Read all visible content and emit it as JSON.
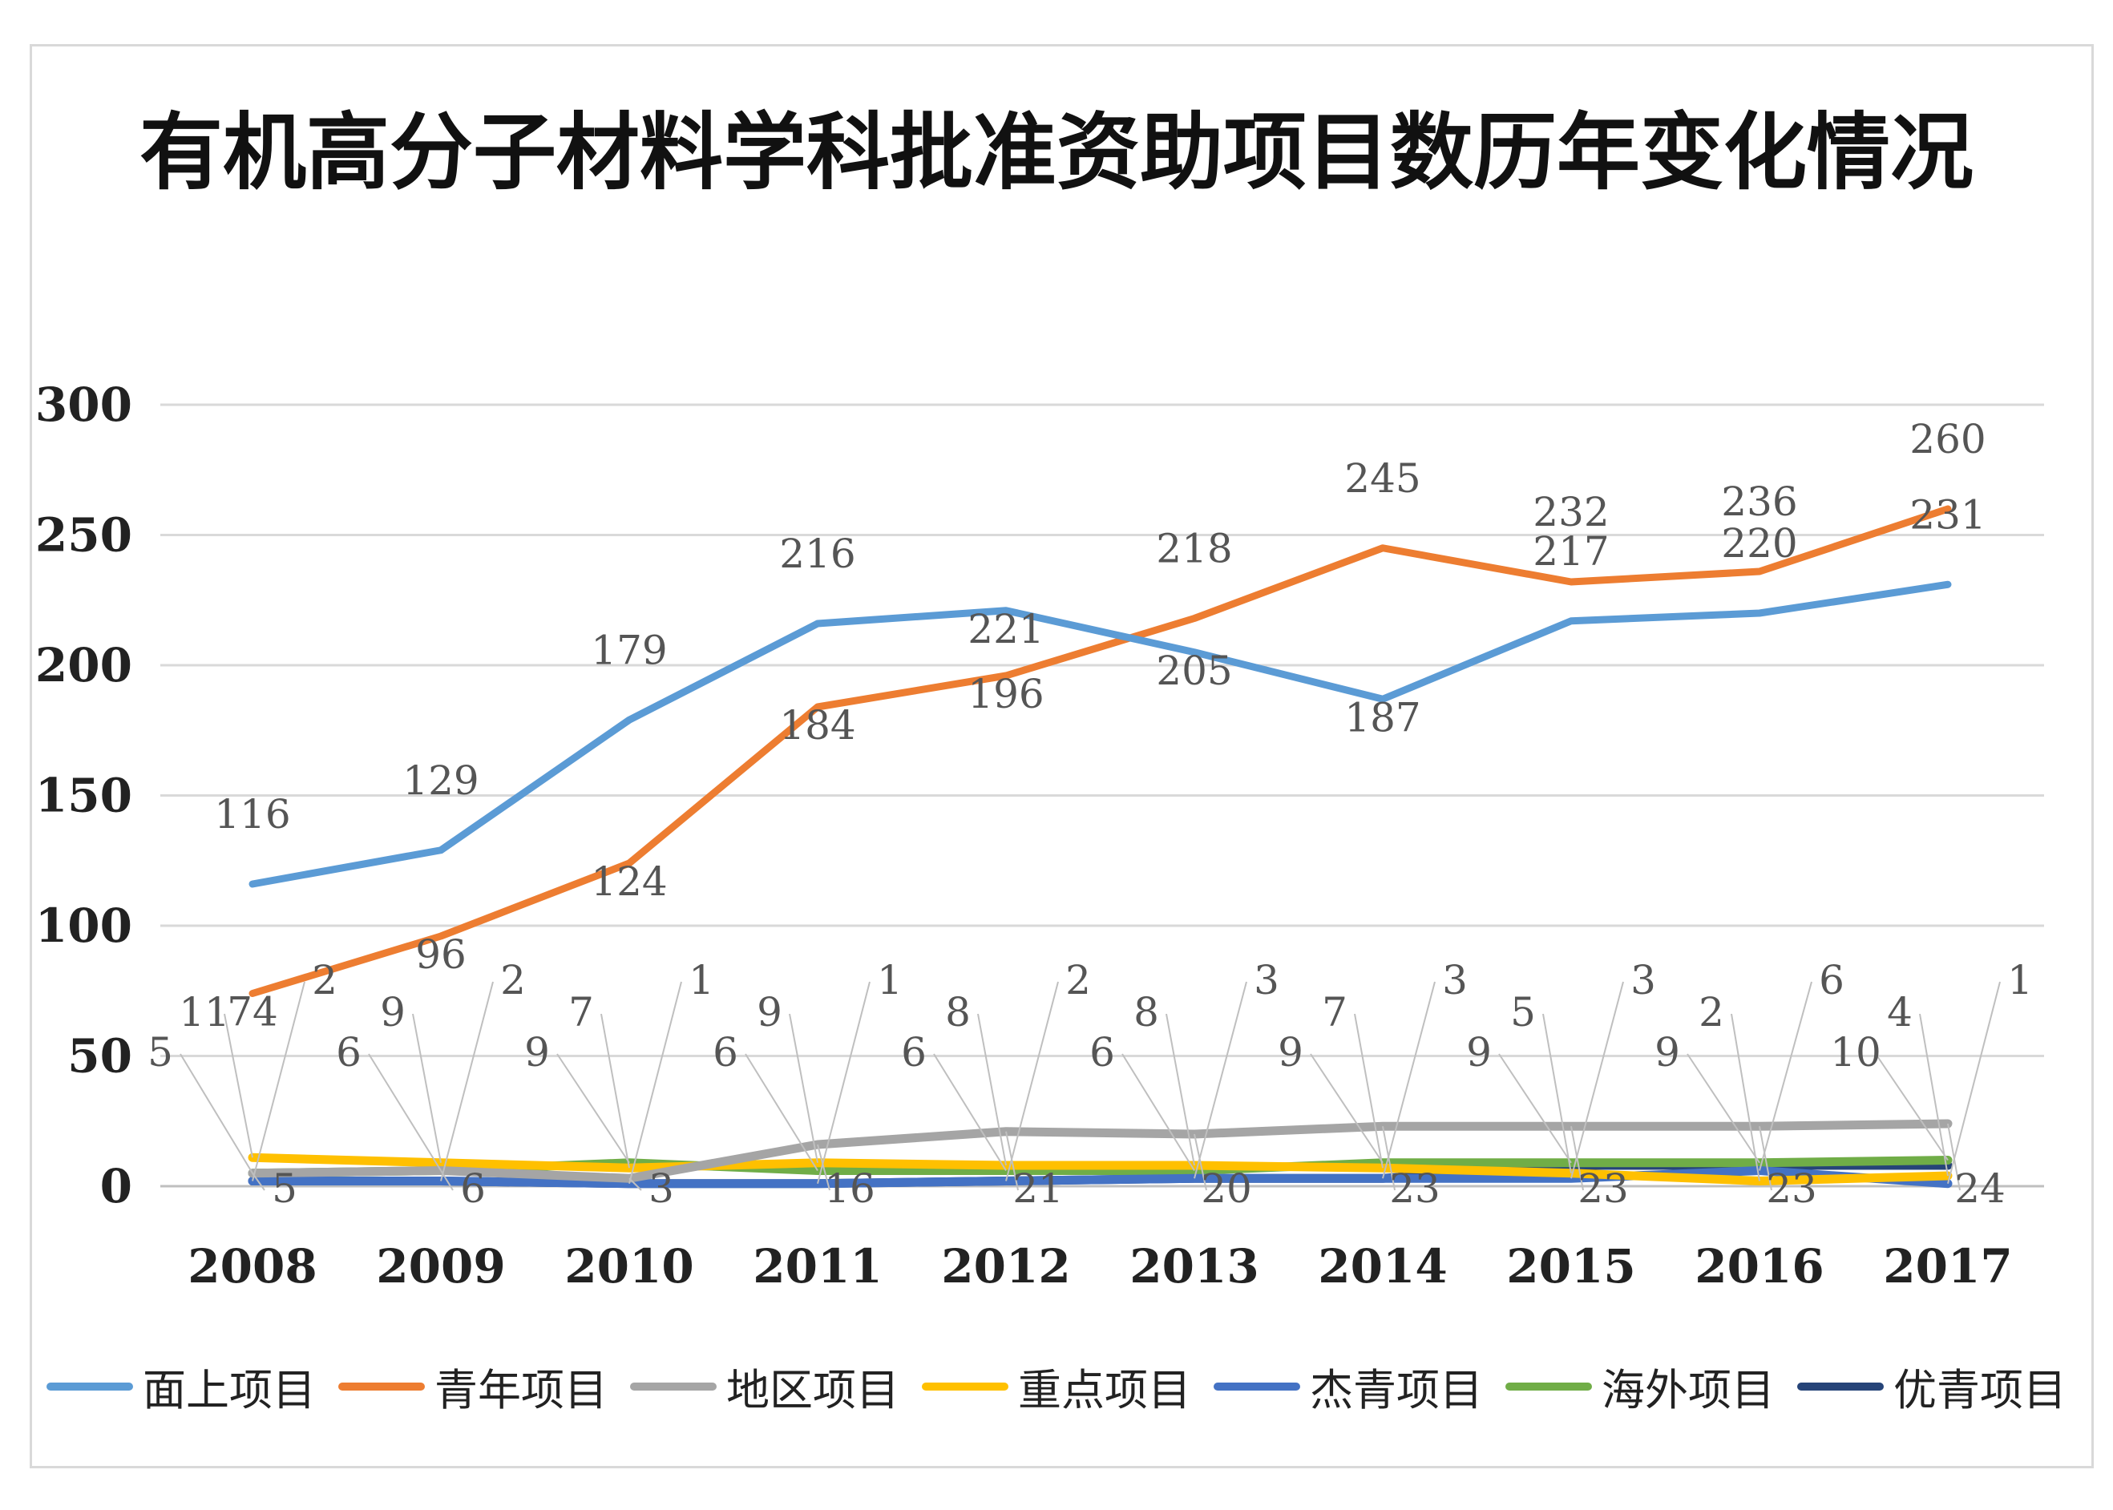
{
  "chart_data": {
    "type": "line",
    "title": "有机高分子材料学科批准资助项目数历年变化情况",
    "categories": [
      "2008",
      "2009",
      "2010",
      "2011",
      "2012",
      "2013",
      "2014",
      "2015",
      "2016",
      "2017"
    ],
    "ylim": [
      0,
      300
    ],
    "yticks": [
      0,
      50,
      100,
      150,
      200,
      250,
      300
    ],
    "grid": true,
    "legend_position": "bottom",
    "series": [
      {
        "name": "面上项目",
        "color": "#5b9bd5",
        "values": [
          116,
          129,
          179,
          216,
          221,
          205,
          187,
          217,
          220,
          231
        ]
      },
      {
        "name": "青年项目",
        "color": "#ed7d31",
        "values": [
          74,
          96,
          124,
          184,
          196,
          218,
          245,
          232,
          236,
          260
        ]
      },
      {
        "name": "地区项目",
        "color": "#a5a5a5",
        "values": [
          5,
          6,
          3,
          16,
          21,
          20,
          23,
          23,
          23,
          24
        ]
      },
      {
        "name": "重点项目",
        "color": "#ffc000",
        "values": [
          11,
          9,
          7,
          9,
          8,
          8,
          7,
          5,
          2,
          4
        ]
      },
      {
        "name": "杰青项目",
        "color": "#4472c4",
        "values": [
          2,
          2,
          1,
          1,
          2,
          3,
          3,
          3,
          6,
          1
        ]
      },
      {
        "name": "海外项目",
        "color": "#70ad47",
        "values": [
          5,
          6,
          9,
          6,
          6,
          6,
          9,
          9,
          9,
          10
        ]
      },
      {
        "name": "优青项目",
        "color": "#264478",
        "values": [
          2,
          2,
          1,
          1,
          2,
          3,
          3,
          8,
          8,
          8
        ]
      }
    ]
  }
}
